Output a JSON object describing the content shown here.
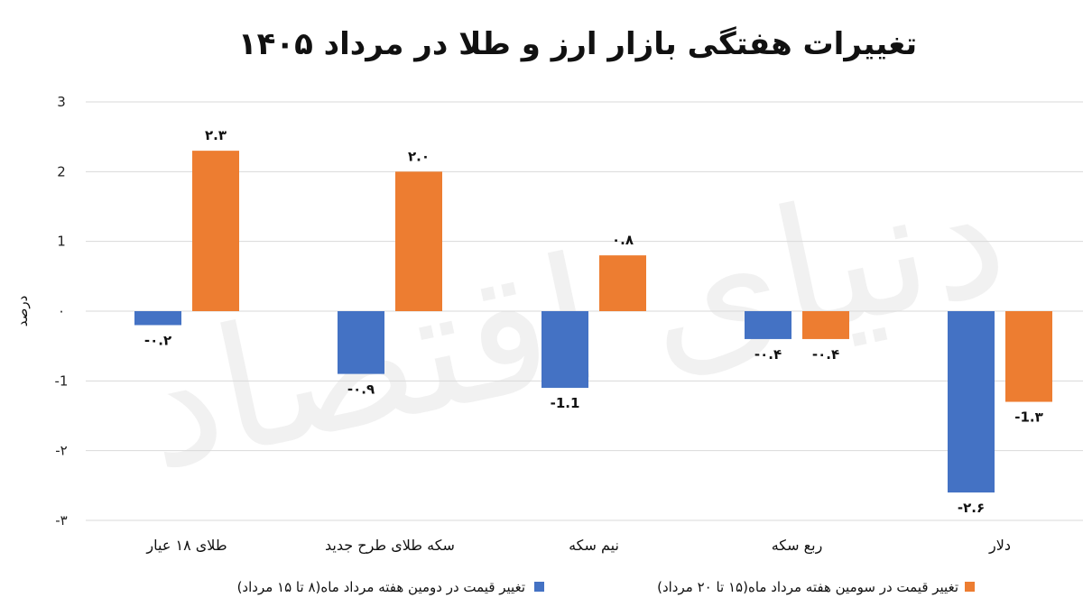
{
  "colors": {
    "series1": "#4472c4",
    "series2": "#ed7d31",
    "grid": "#d9d9d9"
  },
  "chart_data": {
    "type": "bar",
    "title": "تغییرات هفتگی بازار ارز و طلا در مرداد ۱۴۰۵",
    "ylabel": "درصد",
    "xlabel": "",
    "ylim": [
      -3,
      3
    ],
    "yticks": [
      {
        "value": 3,
        "label": "3"
      },
      {
        "value": 2,
        "label": "2"
      },
      {
        "value": 1,
        "label": "1"
      },
      {
        "value": 0,
        "label": "۰"
      },
      {
        "value": -1,
        "label": "-1"
      },
      {
        "value": -2,
        "label": "-۲"
      },
      {
        "value": -3,
        "label": "-۳"
      }
    ],
    "categories": [
      "طلای ۱۸ عیار",
      "سکه طلای طرح جدید",
      "نیم سکه",
      "ربع سکه",
      "دلار"
    ],
    "series": [
      {
        "name": "تغییر قیمت در دومین هفته مرداد ماه(۸ تا ۱۵ مرداد)",
        "values": [
          -0.2,
          -0.9,
          -1.1,
          -0.4,
          -2.6
        ],
        "labels": [
          "-۰.۲",
          "-۰.۹",
          "-1.1",
          "-۰.۴",
          "-۲.۶"
        ]
      },
      {
        "name": "تغییر قیمت در سومین هفته مرداد ماه(۱۵ تا ۲۰ مرداد)",
        "values": [
          2.3,
          2.0,
          0.8,
          -0.4,
          -1.3
        ],
        "labels": [
          "۲.۳",
          "۲.۰",
          "۰.۸",
          "-۰.۴",
          "-1.۳"
        ]
      }
    ],
    "grid": true,
    "legend_position": "bottom"
  },
  "watermark": "دنیای اقتصاد"
}
